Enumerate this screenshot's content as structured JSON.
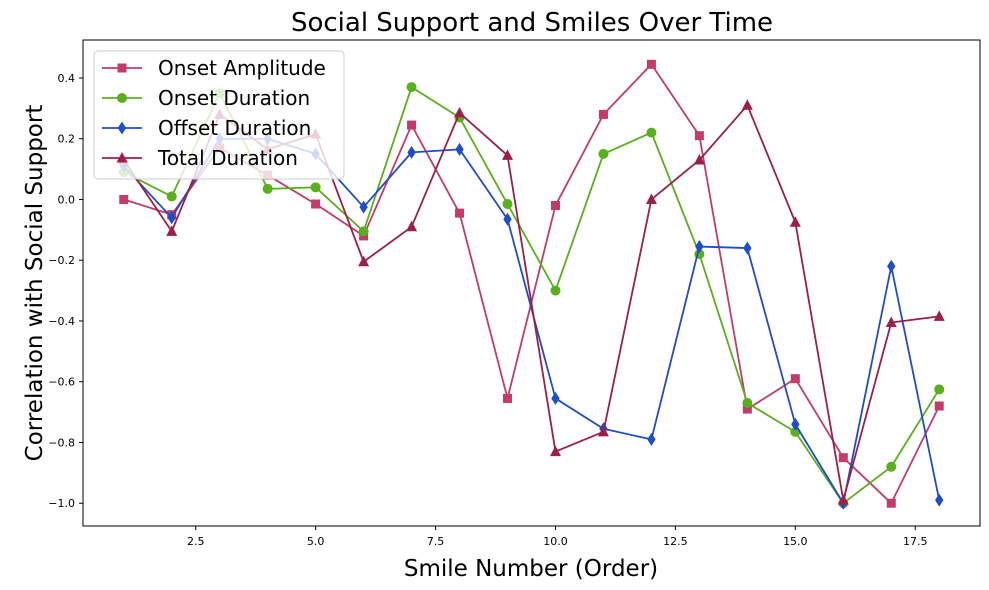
{
  "chart_data": {
    "type": "line",
    "title": "Social Support and Smiles Over Time",
    "xlabel": "Smile Number (Order)",
    "ylabel": "Correlation with Social Support",
    "xlim": [
      0.15,
      18.85
    ],
    "ylim": [
      -1.075,
      0.525
    ],
    "xticks": [
      2.5,
      5.0,
      7.5,
      10.0,
      12.5,
      15.0,
      17.5
    ],
    "xtick_labels": [
      "2.5",
      "5.0",
      "7.5",
      "10.0",
      "12.5",
      "15.0",
      "17.5"
    ],
    "yticks": [
      -1.0,
      -0.8,
      -0.6,
      -0.4,
      -0.2,
      0.0,
      0.2,
      0.4
    ],
    "ytick_labels": [
      "−1.0",
      "−0.8",
      "−0.6",
      "−0.4",
      "−0.2",
      "0.0",
      "0.2",
      "0.4"
    ],
    "legend_position": "upper-left",
    "x": [
      1,
      2,
      3,
      4,
      5,
      6,
      7,
      8,
      9,
      10,
      11,
      12,
      13,
      14,
      15,
      16,
      17,
      18
    ],
    "series": [
      {
        "name": "Onset Amplitude",
        "color": "#c23b6a",
        "marker": "square",
        "values": [
          0.0,
          -0.05,
          0.17,
          0.08,
          -0.015,
          -0.12,
          0.245,
          -0.045,
          -0.655,
          -0.02,
          0.28,
          0.445,
          0.21,
          -0.69,
          -0.59,
          -0.85,
          -1.0,
          -0.68
        ]
      },
      {
        "name": "Onset Duration",
        "color": "#5aaf1e",
        "marker": "circle",
        "values": [
          0.09,
          0.01,
          0.35,
          0.035,
          0.04,
          -0.105,
          0.37,
          0.27,
          -0.015,
          -0.3,
          0.15,
          0.22,
          -0.18,
          -0.67,
          -0.765,
          -1.0,
          -0.88,
          -0.625
        ]
      },
      {
        "name": "Offset Duration",
        "color": "#1f4dc2",
        "marker": "diamond",
        "values": [
          0.11,
          -0.06,
          0.2,
          0.2,
          0.15,
          -0.025,
          0.155,
          0.165,
          -0.065,
          -0.655,
          -0.755,
          -0.79,
          -0.155,
          -0.16,
          -0.74,
          -1.0,
          -0.22,
          -0.99
        ]
      },
      {
        "name": "Total Duration",
        "color": "#9b1f47",
        "marker": "triangle",
        "values": [
          0.13,
          -0.105,
          0.28,
          0.165,
          0.215,
          -0.205,
          -0.09,
          0.285,
          0.145,
          -0.83,
          -0.765,
          0.0,
          0.13,
          0.31,
          -0.075,
          -0.99,
          -0.405,
          -0.385
        ]
      }
    ]
  }
}
